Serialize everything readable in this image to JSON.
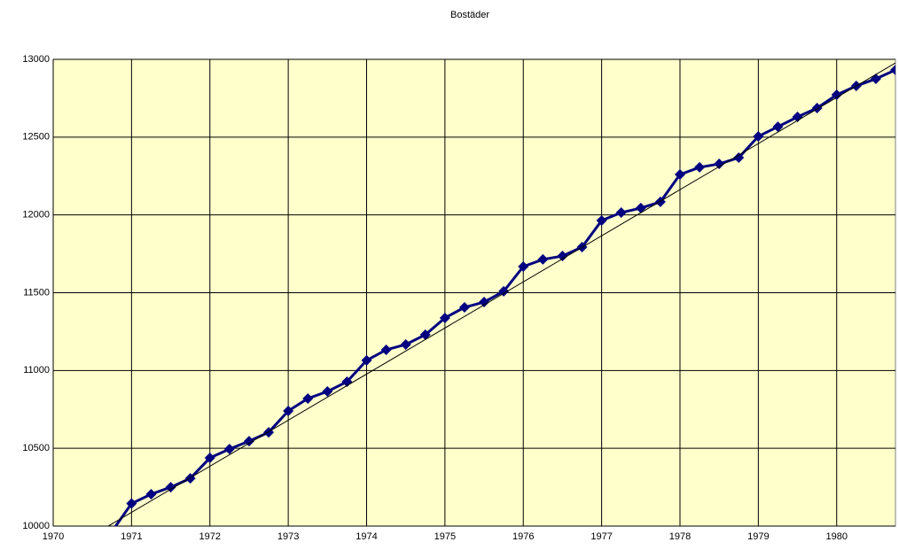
{
  "chart_data": {
    "type": "line",
    "title": "Bostäder",
    "xlim": [
      1970,
      1980.75
    ],
    "xticks": [
      1970,
      1971,
      1972,
      1973,
      1974,
      1975,
      1976,
      1977,
      1978,
      1979,
      1980
    ],
    "ylim": [
      10000,
      13000
    ],
    "yticks": [
      10000,
      10500,
      11000,
      11500,
      12000,
      12500,
      13000
    ],
    "grid": true,
    "background": "#ffffcc",
    "series": [
      {
        "color": "#000080",
        "marker": "diamond",
        "x": [
          1970.75,
          1971,
          1971.25,
          1971.5,
          1971.75,
          1972,
          1972.25,
          1972.5,
          1972.75,
          1973,
          1973.25,
          1973.5,
          1973.75,
          1974,
          1974.25,
          1974.5,
          1974.75,
          1975,
          1975.25,
          1975.5,
          1975.75,
          1976,
          1976.25,
          1976.5,
          1976.75,
          1977,
          1977.25,
          1977.5,
          1977.75,
          1978,
          1978.25,
          1978.5,
          1978.75,
          1979,
          1979.25,
          1979.5,
          1979.75,
          1980,
          1980.25,
          1980.5,
          1980.75
        ],
        "values": [
          9966,
          10145,
          10205,
          10250,
          10307,
          10438,
          10495,
          10546,
          10603,
          10740,
          10820,
          10865,
          10928,
          11065,
          11133,
          11167,
          11230,
          11338,
          11406,
          11440,
          11509,
          11668,
          11714,
          11736,
          11793,
          11964,
          12015,
          12044,
          12084,
          12260,
          12306,
          12328,
          12368,
          12505,
          12567,
          12630,
          12687,
          12772,
          12829,
          12875,
          12932
        ]
      },
      {
        "color": "#000000",
        "x": [
          1970.5,
          1980.75
        ],
        "values": [
          9940,
          12977
        ]
      }
    ]
  }
}
